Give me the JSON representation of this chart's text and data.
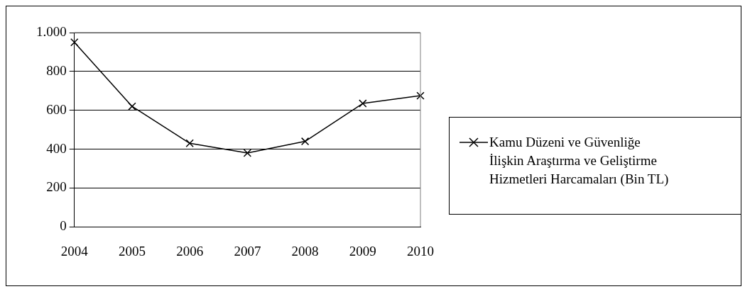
{
  "chart_data": {
    "type": "line",
    "categories": [
      "2004",
      "2005",
      "2006",
      "2007",
      "2008",
      "2009",
      "2010"
    ],
    "series": [
      {
        "name": "Kamu Düzeni ve Güvenliğe İlişkin Araştırma ve Geliştirme Hizmetleri Harcamaları (Bin TL)",
        "color": "#000000",
        "values": [
          950,
          620,
          430,
          380,
          440,
          635,
          675
        ]
      }
    ],
    "ylim": [
      0,
      1000
    ],
    "yticks": [
      0,
      200,
      400,
      600,
      800,
      {
        "value": 1000,
        "label": "1.000"
      }
    ],
    "grid": "y",
    "legend": "right",
    "marker": "cross",
    "line_style": "solid"
  }
}
